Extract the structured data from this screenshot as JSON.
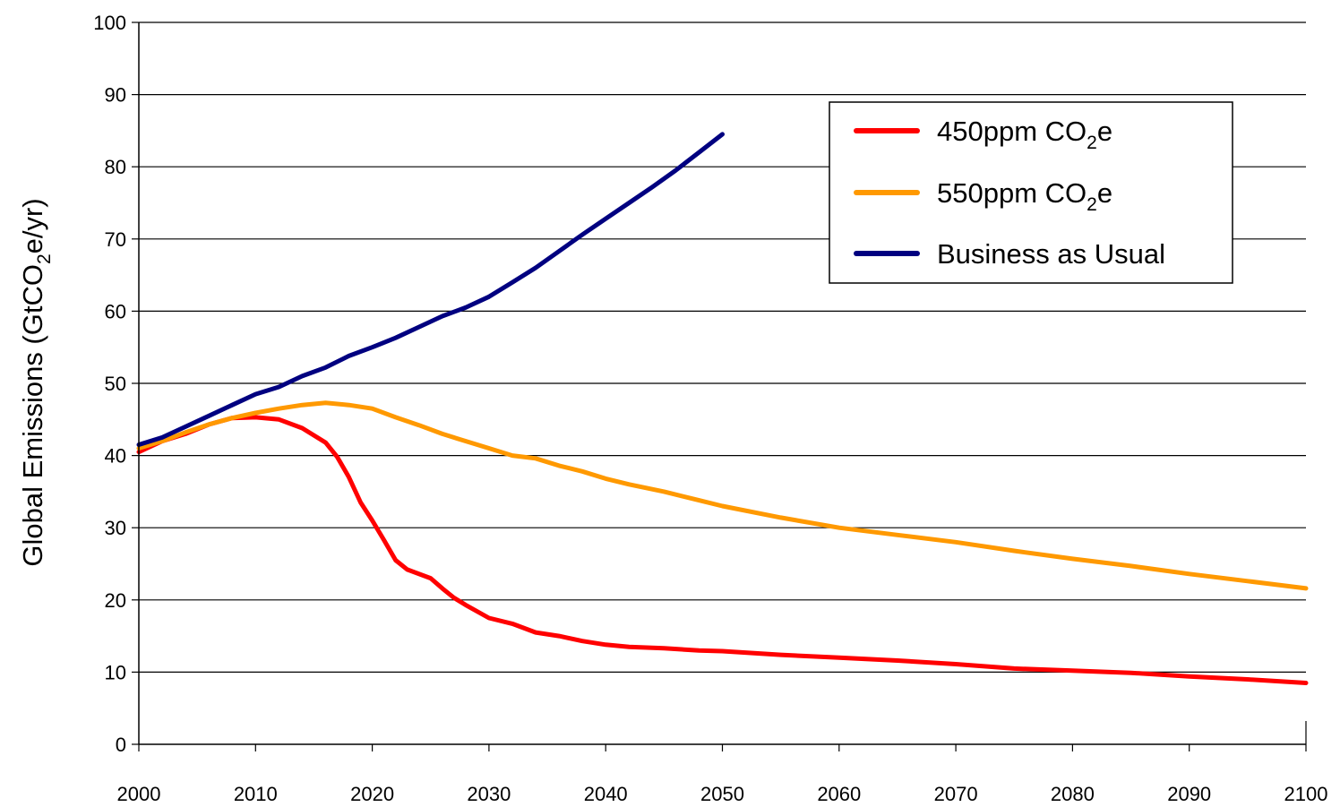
{
  "chart_data": {
    "type": "line",
    "title": "",
    "xlabel": "",
    "ylabel": {
      "prefix": "Global Emissions (GtCO",
      "subscript": "2",
      "suffix": "e/yr)"
    },
    "xlim": [
      2000,
      2100
    ],
    "ylim": [
      0,
      100
    ],
    "x_ticks": [
      "2000",
      "2010",
      "2020",
      "2030",
      "2040",
      "2050",
      "2060",
      "2070",
      "2080",
      "2090",
      "2100"
    ],
    "y_ticks": [
      "0",
      "10",
      "20",
      "30",
      "40",
      "50",
      "60",
      "70",
      "80",
      "90",
      "100"
    ],
    "grid": "horizontal",
    "legend_position": "top-right",
    "series": [
      {
        "name": {
          "prefix": "450ppm CO",
          "subscript": "2",
          "suffix": "e"
        },
        "color": "#ff0000",
        "points": [
          [
            2000,
            40.5
          ],
          [
            2002,
            42
          ],
          [
            2004,
            43
          ],
          [
            2006,
            44.3
          ],
          [
            2008,
            45.2
          ],
          [
            2010,
            45.3
          ],
          [
            2012,
            45
          ],
          [
            2014,
            43.8
          ],
          [
            2016,
            41.8
          ],
          [
            2017,
            39.8
          ],
          [
            2018,
            37
          ],
          [
            2019,
            33.5
          ],
          [
            2020,
            31
          ],
          [
            2021,
            28.3
          ],
          [
            2022,
            25.5
          ],
          [
            2023,
            24.2
          ],
          [
            2025,
            23
          ],
          [
            2026,
            21.6
          ],
          [
            2027,
            20.3
          ],
          [
            2028,
            19.3
          ],
          [
            2030,
            17.5
          ],
          [
            2032,
            16.7
          ],
          [
            2034,
            15.5
          ],
          [
            2036,
            15
          ],
          [
            2038,
            14.3
          ],
          [
            2040,
            13.8
          ],
          [
            2042,
            13.5
          ],
          [
            2045,
            13.3
          ],
          [
            2048,
            13
          ],
          [
            2050,
            12.9
          ],
          [
            2055,
            12.4
          ],
          [
            2060,
            12
          ],
          [
            2065,
            11.6
          ],
          [
            2070,
            11.1
          ],
          [
            2075,
            10.5
          ],
          [
            2080,
            10.2
          ],
          [
            2085,
            9.9
          ],
          [
            2090,
            9.4
          ],
          [
            2095,
            9
          ],
          [
            2100,
            8.5
          ]
        ]
      },
      {
        "name": {
          "prefix": "550ppm CO",
          "subscript": "2",
          "suffix": "e"
        },
        "color": "#ff9900",
        "points": [
          [
            2000,
            41
          ],
          [
            2002,
            42
          ],
          [
            2004,
            43.2
          ],
          [
            2006,
            44.3
          ],
          [
            2008,
            45.2
          ],
          [
            2010,
            45.9
          ],
          [
            2012,
            46.5
          ],
          [
            2014,
            47
          ],
          [
            2016,
            47.3
          ],
          [
            2018,
            47
          ],
          [
            2020,
            46.5
          ],
          [
            2022,
            45.3
          ],
          [
            2024,
            44.2
          ],
          [
            2026,
            43
          ],
          [
            2028,
            42
          ],
          [
            2030,
            41
          ],
          [
            2032,
            40
          ],
          [
            2034,
            39.6
          ],
          [
            2036,
            38.6
          ],
          [
            2038,
            37.8
          ],
          [
            2040,
            36.8
          ],
          [
            2042,
            36
          ],
          [
            2045,
            35
          ],
          [
            2048,
            33.8
          ],
          [
            2050,
            33
          ],
          [
            2055,
            31.4
          ],
          [
            2060,
            30
          ],
          [
            2065,
            29
          ],
          [
            2070,
            28
          ],
          [
            2075,
            26.8
          ],
          [
            2080,
            25.7
          ],
          [
            2085,
            24.7
          ],
          [
            2090,
            23.6
          ],
          [
            2095,
            22.6
          ],
          [
            2100,
            21.6
          ]
        ]
      },
      {
        "name": {
          "prefix": "Business as Usual",
          "subscript": "",
          "suffix": ""
        },
        "color": "#000080",
        "points": [
          [
            2000,
            41.5
          ],
          [
            2002,
            42.5
          ],
          [
            2004,
            44
          ],
          [
            2006,
            45.5
          ],
          [
            2008,
            47
          ],
          [
            2010,
            48.5
          ],
          [
            2012,
            49.5
          ],
          [
            2014,
            51
          ],
          [
            2016,
            52.2
          ],
          [
            2018,
            53.8
          ],
          [
            2020,
            55
          ],
          [
            2022,
            56.3
          ],
          [
            2024,
            57.8
          ],
          [
            2026,
            59.3
          ],
          [
            2028,
            60.5
          ],
          [
            2030,
            62
          ],
          [
            2032,
            64
          ],
          [
            2034,
            66
          ],
          [
            2036,
            68.3
          ],
          [
            2038,
            70.6
          ],
          [
            2040,
            72.8
          ],
          [
            2042,
            75
          ],
          [
            2044,
            77.2
          ],
          [
            2046,
            79.5
          ],
          [
            2048,
            82
          ],
          [
            2050,
            84.5
          ]
        ]
      }
    ]
  }
}
